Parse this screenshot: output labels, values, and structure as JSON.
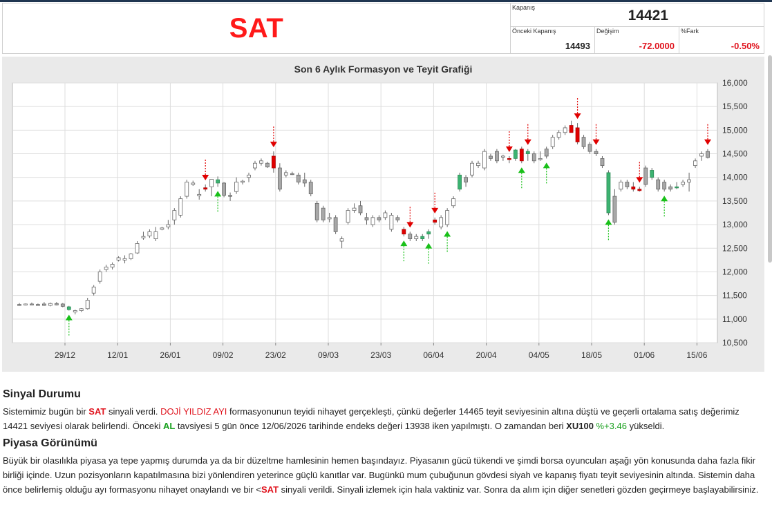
{
  "header": {
    "signal": "SAT",
    "close_label": "Kapanış",
    "close_value": "14421",
    "prev_close_label": "Önceki Kapanış",
    "prev_close_value": "14493",
    "change_label": "Değişim",
    "change_value": "-72.0000",
    "pct_label": "%Fark",
    "pct_value": "-0.50%"
  },
  "colors": {
    "signal_red": "#ff1a1a",
    "negative": "#e0141e",
    "positive": "#19a01e",
    "candle_up": "#ffffff",
    "candle_down": "#a8a8a8"
  },
  "chart_data": {
    "type": "candlestick",
    "title": "Son 6 Aylık Formasyon ve Teyit Grafiği",
    "ylim": [
      10500,
      16000
    ],
    "y_ticks": [
      "16,000",
      "15,500",
      "15,000",
      "14,500",
      "14,000",
      "13,500",
      "13,000",
      "12,500",
      "12,000",
      "11,500",
      "11,000",
      "10,500"
    ],
    "x_ticks": [
      "29/12",
      "12/01",
      "26/01",
      "09/02",
      "23/02",
      "09/03",
      "23/03",
      "06/04",
      "20/04",
      "04/05",
      "18/05",
      "01/06",
      "15/06"
    ],
    "grid": true,
    "candles": [
      {
        "o": 11310,
        "h": 11340,
        "l": 11280,
        "c": 11300
      },
      {
        "o": 11300,
        "h": 11330,
        "l": 11290,
        "c": 11320
      },
      {
        "o": 11320,
        "h": 11350,
        "l": 11300,
        "c": 11310
      },
      {
        "o": 11310,
        "h": 11330,
        "l": 11290,
        "c": 11300
      },
      {
        "o": 11320,
        "h": 11360,
        "l": 11280,
        "c": 11290
      },
      {
        "o": 11290,
        "h": 11350,
        "l": 11270,
        "c": 11330
      },
      {
        "o": 11330,
        "h": 11360,
        "l": 11290,
        "c": 11300
      },
      {
        "o": 11320,
        "h": 11340,
        "l": 11250,
        "c": 11270
      },
      {
        "o": 11260,
        "h": 11280,
        "l": 11180,
        "c": 11200
      },
      {
        "o": 11150,
        "h": 11200,
        "l": 11100,
        "c": 11180
      },
      {
        "o": 11180,
        "h": 11230,
        "l": 11150,
        "c": 11220
      },
      {
        "o": 11220,
        "h": 11450,
        "l": 11200,
        "c": 11400
      },
      {
        "o": 11550,
        "h": 11720,
        "l": 11500,
        "c": 11680
      },
      {
        "o": 11800,
        "h": 12050,
        "l": 11750,
        "c": 12000
      },
      {
        "o": 12050,
        "h": 12150,
        "l": 12000,
        "c": 12100
      },
      {
        "o": 12100,
        "h": 12200,
        "l": 12050,
        "c": 12160
      },
      {
        "o": 12250,
        "h": 12330,
        "l": 12220,
        "c": 12300
      },
      {
        "o": 12250,
        "h": 12350,
        "l": 12180,
        "c": 12280
      },
      {
        "o": 12280,
        "h": 12400,
        "l": 12250,
        "c": 12380
      },
      {
        "o": 12400,
        "h": 12650,
        "l": 12380,
        "c": 12600
      },
      {
        "o": 12720,
        "h": 12850,
        "l": 12680,
        "c": 12750
      },
      {
        "o": 12760,
        "h": 12900,
        "l": 12720,
        "c": 12850
      },
      {
        "o": 12700,
        "h": 12950,
        "l": 12650,
        "c": 12850
      },
      {
        "o": 12900,
        "h": 12950,
        "l": 12880,
        "c": 12930
      },
      {
        "o": 12950,
        "h": 13100,
        "l": 12900,
        "c": 13000
      },
      {
        "o": 13100,
        "h": 13350,
        "l": 13000,
        "c": 13300
      },
      {
        "o": 13200,
        "h": 13600,
        "l": 13150,
        "c": 13550
      },
      {
        "o": 13600,
        "h": 13950,
        "l": 13550,
        "c": 13900
      },
      {
        "o": 13850,
        "h": 13930,
        "l": 13820,
        "c": 13880
      },
      {
        "o": 13610,
        "h": 13750,
        "l": 13530,
        "c": 13640
      },
      {
        "o": 13750,
        "h": 13850,
        "l": 13700,
        "c": 13780
      },
      {
        "o": 13800,
        "h": 13960,
        "l": 13600,
        "c": 13960
      },
      {
        "o": 13950,
        "h": 14020,
        "l": 13800,
        "c": 13880
      },
      {
        "o": 13880,
        "h": 13900,
        "l": 13580,
        "c": 13620
      },
      {
        "o": 13620,
        "h": 13680,
        "l": 13500,
        "c": 13600
      },
      {
        "o": 13700,
        "h": 14000,
        "l": 13650,
        "c": 13900
      },
      {
        "o": 13900,
        "h": 13950,
        "l": 13850,
        "c": 13920
      },
      {
        "o": 14000,
        "h": 14100,
        "l": 13900,
        "c": 14050
      },
      {
        "o": 14200,
        "h": 14350,
        "l": 14150,
        "c": 14300
      },
      {
        "o": 14300,
        "h": 14400,
        "l": 14250,
        "c": 14350
      },
      {
        "o": 14300,
        "h": 14330,
        "l": 14200,
        "c": 14220
      },
      {
        "o": 14450,
        "h": 14550,
        "l": 14100,
        "c": 14200
      },
      {
        "o": 14200,
        "h": 14300,
        "l": 13700,
        "c": 13750
      },
      {
        "o": 14050,
        "h": 14150,
        "l": 14000,
        "c": 14100
      },
      {
        "o": 14080,
        "h": 14120,
        "l": 14050,
        "c": 14070
      },
      {
        "o": 14050,
        "h": 14100,
        "l": 13850,
        "c": 13900
      },
      {
        "o": 13950,
        "h": 14100,
        "l": 13800,
        "c": 13880
      },
      {
        "o": 13900,
        "h": 13950,
        "l": 13600,
        "c": 13650
      },
      {
        "o": 13450,
        "h": 13500,
        "l": 13050,
        "c": 13100
      },
      {
        "o": 13350,
        "h": 13400,
        "l": 13050,
        "c": 13100
      },
      {
        "o": 13120,
        "h": 13250,
        "l": 13050,
        "c": 13150
      },
      {
        "o": 13150,
        "h": 13200,
        "l": 12800,
        "c": 12850
      },
      {
        "o": 12650,
        "h": 12750,
        "l": 12500,
        "c": 12700
      },
      {
        "o": 13050,
        "h": 13350,
        "l": 13000,
        "c": 13300
      },
      {
        "o": 13300,
        "h": 13450,
        "l": 13250,
        "c": 13350
      },
      {
        "o": 13400,
        "h": 13500,
        "l": 13200,
        "c": 13250
      },
      {
        "o": 13150,
        "h": 13250,
        "l": 13000,
        "c": 13100
      },
      {
        "o": 13000,
        "h": 13200,
        "l": 12950,
        "c": 13150
      },
      {
        "o": 13150,
        "h": 13200,
        "l": 13050,
        "c": 13100
      },
      {
        "o": 13150,
        "h": 13300,
        "l": 13100,
        "c": 13250
      },
      {
        "o": 12900,
        "h": 13250,
        "l": 12850,
        "c": 13200
      },
      {
        "o": 13150,
        "h": 13200,
        "l": 13050,
        "c": 13100
      },
      {
        "o": 12900,
        "h": 12950,
        "l": 12750,
        "c": 12800
      },
      {
        "o": 12800,
        "h": 12850,
        "l": 12650,
        "c": 12700
      },
      {
        "o": 12700,
        "h": 12800,
        "l": 12650,
        "c": 12750
      },
      {
        "o": 12700,
        "h": 12800,
        "l": 12650,
        "c": 12750
      },
      {
        "o": 12800,
        "h": 12900,
        "l": 12700,
        "c": 12850
      },
      {
        "o": 13050,
        "h": 13150,
        "l": 13000,
        "c": 13100
      },
      {
        "o": 12950,
        "h": 13200,
        "l": 12900,
        "c": 13150
      },
      {
        "o": 13000,
        "h": 13350,
        "l": 12950,
        "c": 13300
      },
      {
        "o": 13400,
        "h": 13600,
        "l": 13350,
        "c": 13550
      },
      {
        "o": 13750,
        "h": 14100,
        "l": 13700,
        "c": 14050
      },
      {
        "o": 14000,
        "h": 14050,
        "l": 13800,
        "c": 13900
      },
      {
        "o": 14050,
        "h": 14350,
        "l": 14000,
        "c": 14300
      },
      {
        "o": 14250,
        "h": 14350,
        "l": 14200,
        "c": 14300
      },
      {
        "o": 14200,
        "h": 14600,
        "l": 14150,
        "c": 14550
      },
      {
        "o": 14450,
        "h": 14500,
        "l": 14350,
        "c": 14400
      },
      {
        "o": 14550,
        "h": 14600,
        "l": 14300,
        "c": 14350
      },
      {
        "o": 14450,
        "h": 14480,
        "l": 14350,
        "c": 14450
      },
      {
        "o": 14400,
        "h": 14450,
        "l": 14300,
        "c": 14380
      },
      {
        "o": 14400,
        "h": 14600,
        "l": 14350,
        "c": 14580
      },
      {
        "o": 14600,
        "h": 14650,
        "l": 14300,
        "c": 14350
      },
      {
        "o": 14500,
        "h": 14600,
        "l": 14350,
        "c": 14550
      },
      {
        "o": 14500,
        "h": 14550,
        "l": 14300,
        "c": 14350
      },
      {
        "o": 14400,
        "h": 14550,
        "l": 14350,
        "c": 14400
      },
      {
        "o": 14600,
        "h": 14650,
        "l": 14400,
        "c": 14450
      },
      {
        "o": 14650,
        "h": 14900,
        "l": 14600,
        "c": 14850
      },
      {
        "o": 14850,
        "h": 15000,
        "l": 14800,
        "c": 14950
      },
      {
        "o": 14950,
        "h": 15100,
        "l": 14900,
        "c": 15050
      },
      {
        "o": 15100,
        "h": 15200,
        "l": 15000,
        "c": 14950
      },
      {
        "o": 15050,
        "h": 15150,
        "l": 14700,
        "c": 14750
      },
      {
        "o": 14850,
        "h": 14900,
        "l": 14600,
        "c": 14650
      },
      {
        "o": 14700,
        "h": 14750,
        "l": 14500,
        "c": 14550
      },
      {
        "o": 14550,
        "h": 14600,
        "l": 14450,
        "c": 14500
      },
      {
        "o": 14400,
        "h": 14450,
        "l": 14200,
        "c": 14250
      },
      {
        "o": 14100,
        "h": 14150,
        "l": 13200,
        "c": 13250
      },
      {
        "o": 13600,
        "h": 13750,
        "l": 13000,
        "c": 13050
      },
      {
        "o": 13750,
        "h": 13950,
        "l": 13700,
        "c": 13900
      },
      {
        "o": 13900,
        "h": 13950,
        "l": 13750,
        "c": 13800
      },
      {
        "o": 13800,
        "h": 13900,
        "l": 13700,
        "c": 13750
      },
      {
        "o": 13750,
        "h": 13800,
        "l": 13700,
        "c": 13720
      },
      {
        "o": 14200,
        "h": 14250,
        "l": 13800,
        "c": 13850
      },
      {
        "o": 14150,
        "h": 14200,
        "l": 13950,
        "c": 14000
      },
      {
        "o": 13950,
        "h": 14000,
        "l": 13700,
        "c": 13750
      },
      {
        "o": 13900,
        "h": 13950,
        "l": 13700,
        "c": 13750
      },
      {
        "o": 13800,
        "h": 13850,
        "l": 13700,
        "c": 13750
      },
      {
        "o": 13800,
        "h": 13900,
        "l": 13750,
        "c": 13800
      },
      {
        "o": 13850,
        "h": 13950,
        "l": 13800,
        "c": 13900
      },
      {
        "o": 13900,
        "h": 14100,
        "l": 13700,
        "c": 13950
      },
      {
        "o": 14250,
        "h": 14400,
        "l": 14200,
        "c": 14350
      },
      {
        "o": 14450,
        "h": 14550,
        "l": 14350,
        "c": 14500
      },
      {
        "o": 14550,
        "h": 14600,
        "l": 14400,
        "c": 14420
      }
    ],
    "highlights": [
      {
        "index": 8,
        "type": "buy"
      },
      {
        "index": 30,
        "type": "sell"
      },
      {
        "index": 32,
        "type": "buy"
      },
      {
        "index": 41,
        "type": "sell"
      },
      {
        "index": 62,
        "type": "sell"
      },
      {
        "index": 65,
        "type": "buy"
      },
      {
        "index": 66,
        "type": "buy"
      },
      {
        "index": 67,
        "type": "sell"
      },
      {
        "index": 71,
        "type": "buy"
      },
      {
        "index": 79,
        "type": "sell"
      },
      {
        "index": 80,
        "type": "buy"
      },
      {
        "index": 81,
        "type": "sell"
      },
      {
        "index": 82,
        "type": "buy"
      },
      {
        "index": 89,
        "type": "sell"
      },
      {
        "index": 90,
        "type": "sell"
      },
      {
        "index": 95,
        "type": "buy"
      },
      {
        "index": 99,
        "type": "sell"
      },
      {
        "index": 100,
        "type": "sell"
      },
      {
        "index": 102,
        "type": "buy"
      },
      {
        "index": 106,
        "type": "buy"
      }
    ],
    "signals": [
      {
        "index": 8,
        "type": "buy"
      },
      {
        "index": 30,
        "type": "sell"
      },
      {
        "index": 32,
        "type": "buy"
      },
      {
        "index": 41,
        "type": "sell"
      },
      {
        "index": 62,
        "type": "buy"
      },
      {
        "index": 63,
        "type": "sell"
      },
      {
        "index": 66,
        "type": "buy"
      },
      {
        "index": 67,
        "type": "sell"
      },
      {
        "index": 69,
        "type": "buy"
      },
      {
        "index": 79,
        "type": "sell"
      },
      {
        "index": 81,
        "type": "buy"
      },
      {
        "index": 82,
        "type": "sell"
      },
      {
        "index": 85,
        "type": "buy"
      },
      {
        "index": 90,
        "type": "sell"
      },
      {
        "index": 93,
        "type": "sell"
      },
      {
        "index": 95,
        "type": "buy"
      },
      {
        "index": 100,
        "type": "sell"
      },
      {
        "index": 104,
        "type": "buy"
      },
      {
        "index": 111,
        "type": "sell"
      }
    ]
  },
  "sections": {
    "s1_title": "Sinyal Durumu",
    "s1": {
      "t1": "Sistemimiz bugün bir ",
      "sat1": "SAT",
      "t2": " sinyali verdi. ",
      "pattern": "DOJİ YILDIZ AYI",
      "t3": " formasyonunun teyidi nihayet gerçekleşti, çünkü değerler 14465 teyit seviyesinin altına düştü ve geçerli ortalama satış değerimiz 14421 seviyesi olarak belirlendi. Önceki ",
      "al": "AL",
      "t4": " tavsiyesi 5 gün önce 12/06/2026 tarihinde endeks değeri 13938 iken yapılmıştı. O zamandan beri ",
      "index": "XU100",
      "pct": " %+3.46",
      "t5": " yükseldi."
    },
    "s2_title": "Piyasa Görünümü",
    "s2": {
      "t1": "Büyük bir olasılıkla piyasa ya tepe yapmış durumda ya da bir düzeltme hamlesinin hemen başındayız. Piyasanın gücü tükendi ve şimdi borsa oyuncuları aşağı yön konusunda daha fazla fikir birliği içinde. Uzun pozisyonların kapatılmasına bizi yönlendiren yeterince güçlü kanıtlar var. Bugünkü mum çubuğunun gövdesi siyah ve kapanış fiyatı teyit seviyesinin altında. Sistemin daha önce belirlemiş olduğu ayı formasyonu nihayet onaylandı ve bir <",
      "sat": "SAT",
      "t2": " sinyali verildi. Sinyali izlemek için hala vaktiniz var. Sonra da alım için diğer senetleri gözden geçirmeye başlayabilirsiniz."
    }
  }
}
